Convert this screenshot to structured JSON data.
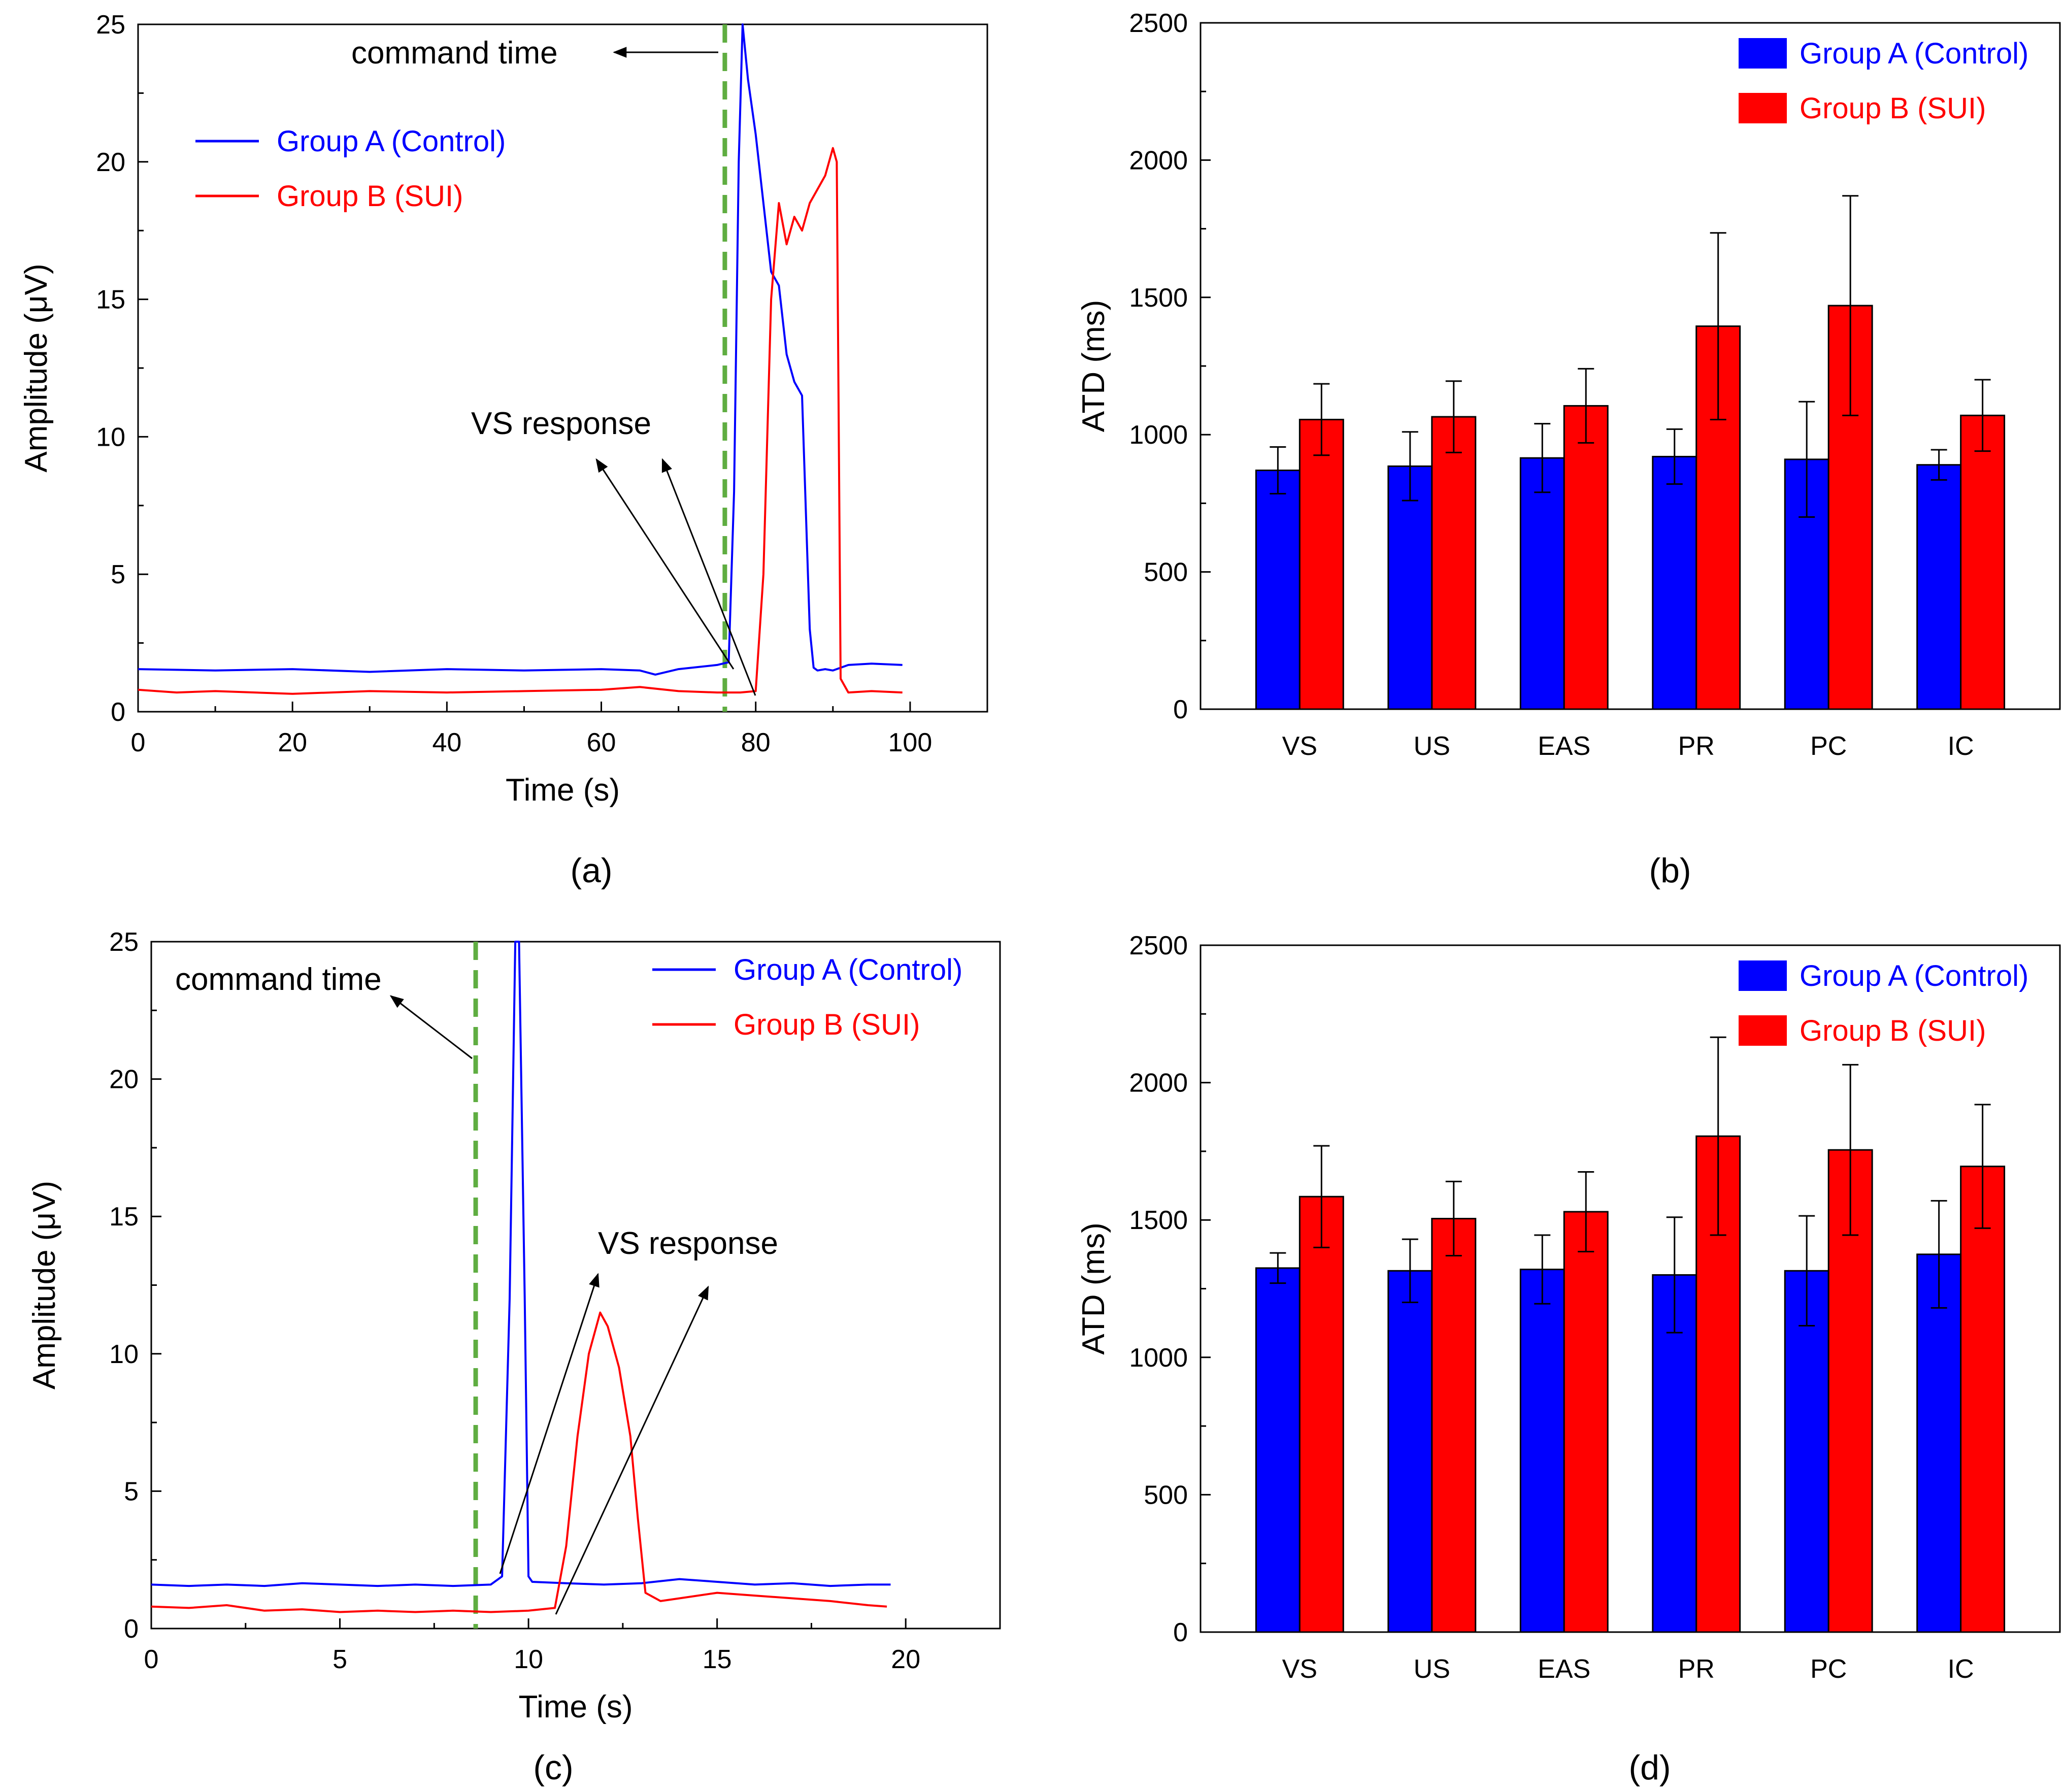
{
  "colors": {
    "group_a": "#0000ff",
    "group_b": "#ff0000",
    "command_line": "#5fad41",
    "axis": "#000000"
  },
  "chart_data": [
    {
      "id": "a",
      "type": "line",
      "panel_label": "(a)",
      "xlabel": "Time (s)",
      "ylabel": "Amplitude (μV)",
      "xlim": [
        0,
        110
      ],
      "ylim": [
        0,
        25
      ],
      "x_ticks": [
        0,
        20,
        40,
        60,
        80,
        100
      ],
      "y_ticks": [
        0,
        5,
        10,
        15,
        20,
        25
      ],
      "legend_position": "top-left",
      "command_time": 76,
      "annotations": {
        "command": "command time",
        "response": "VS response"
      },
      "series": [
        {
          "name": "Group A (Control)",
          "color": "#0000ff",
          "x": [
            0,
            10,
            20,
            30,
            40,
            50,
            60,
            65,
            67,
            70,
            75,
            76.5,
            77.2,
            77.8,
            78.3,
            79,
            80,
            81,
            82,
            83,
            84,
            85,
            86,
            87,
            87.5,
            88,
            89,
            90,
            92,
            95,
            99
          ],
          "y": [
            1.55,
            1.5,
            1.55,
            1.45,
            1.55,
            1.5,
            1.55,
            1.5,
            1.35,
            1.55,
            1.7,
            1.8,
            8,
            20,
            25,
            23,
            21,
            18.5,
            16,
            15.5,
            13,
            12,
            11.5,
            3,
            1.6,
            1.5,
            1.55,
            1.5,
            1.7,
            1.75,
            1.7
          ]
        },
        {
          "name": "Group B (SUI)",
          "color": "#ff0000",
          "x": [
            0,
            5,
            10,
            20,
            30,
            40,
            50,
            60,
            65,
            70,
            75,
            78,
            80,
            81,
            82,
            83,
            84,
            85,
            86,
            87,
            88,
            89,
            90,
            90.5,
            91,
            92,
            95,
            99
          ],
          "y": [
            0.8,
            0.7,
            0.75,
            0.65,
            0.75,
            0.7,
            0.75,
            0.8,
            0.9,
            0.75,
            0.7,
            0.7,
            0.75,
            5,
            15,
            18.5,
            17,
            18,
            17.5,
            18.5,
            19,
            19.5,
            20.5,
            20,
            1.2,
            0.7,
            0.75,
            0.7
          ]
        }
      ]
    },
    {
      "id": "b",
      "type": "bar",
      "panel_label": "(b)",
      "xlabel": "",
      "ylabel": "ATD (ms)",
      "ylim": [
        0,
        2500
      ],
      "y_ticks": [
        0,
        500,
        1000,
        1500,
        2000,
        2500
      ],
      "legend_position": "top-right",
      "categories": [
        "VS",
        "US",
        "EAS",
        "PR",
        "PC",
        "IC"
      ],
      "series": [
        {
          "name": "Group A (Control)",
          "color": "#0000ff",
          "values": [
            870,
            885,
            915,
            920,
            910,
            890
          ],
          "errors": [
            85,
            125,
            125,
            100,
            210,
            55
          ]
        },
        {
          "name": "Group B (SUI)",
          "color": "#ff0000",
          "values": [
            1055,
            1065,
            1105,
            1395,
            1470,
            1070
          ],
          "errors": [
            130,
            130,
            135,
            340,
            400,
            130
          ]
        }
      ]
    },
    {
      "id": "c",
      "type": "line",
      "panel_label": "(c)",
      "xlabel": "Time (s)",
      "ylabel": "Amplitude (μV)",
      "xlim": [
        0,
        22.5
      ],
      "ylim": [
        0,
        25
      ],
      "x_ticks": [
        0,
        5,
        10,
        15,
        20
      ],
      "y_ticks": [
        0,
        5,
        10,
        15,
        20,
        25
      ],
      "legend_position": "top-right",
      "command_time": 8.6,
      "annotations": {
        "command": "command time",
        "response": "VS response"
      },
      "series": [
        {
          "name": "Group A (Control)",
          "color": "#0000ff",
          "x": [
            0,
            1,
            2,
            3,
            4,
            5,
            6,
            7,
            8,
            9,
            9.3,
            9.5,
            9.65,
            9.75,
            9.9,
            10.0,
            10.1,
            11,
            12,
            13,
            14,
            15,
            16,
            17,
            18,
            19,
            19.6
          ],
          "y": [
            1.6,
            1.55,
            1.6,
            1.55,
            1.65,
            1.6,
            1.55,
            1.6,
            1.55,
            1.6,
            1.9,
            12,
            25,
            25,
            12,
            1.9,
            1.7,
            1.65,
            1.6,
            1.65,
            1.8,
            1.7,
            1.6,
            1.65,
            1.55,
            1.6,
            1.6
          ]
        },
        {
          "name": "Group B (SUI)",
          "color": "#ff0000",
          "x": [
            0,
            1,
            2,
            3,
            4,
            5,
            6,
            7,
            8,
            9,
            10,
            10.7,
            11,
            11.3,
            11.6,
            11.9,
            12.1,
            12.4,
            12.7,
            12.9,
            13.1,
            13.5,
            14,
            15,
            16,
            17,
            18,
            19,
            19.5
          ],
          "y": [
            0.8,
            0.75,
            0.85,
            0.65,
            0.7,
            0.6,
            0.65,
            0.6,
            0.65,
            0.6,
            0.65,
            0.75,
            3,
            7,
            10,
            11.5,
            11,
            9.5,
            7,
            4,
            1.3,
            1.0,
            1.1,
            1.3,
            1.2,
            1.1,
            1.0,
            0.85,
            0.8
          ]
        }
      ]
    },
    {
      "id": "d",
      "type": "bar",
      "panel_label": "(d)",
      "xlabel": "",
      "ylabel": "ATD (ms)",
      "ylim": [
        0,
        2500
      ],
      "y_ticks": [
        0,
        500,
        1000,
        1500,
        2000,
        2500
      ],
      "legend_position": "top-right",
      "categories": [
        "VS",
        "US",
        "EAS",
        "PR",
        "PC",
        "IC"
      ],
      "series": [
        {
          "name": "Group A (Control)",
          "color": "#0000ff",
          "values": [
            1325,
            1315,
            1320,
            1300,
            1315,
            1375
          ],
          "errors": [
            55,
            115,
            125,
            210,
            200,
            195
          ]
        },
        {
          "name": "Group B (SUI)",
          "color": "#ff0000",
          "values": [
            1585,
            1505,
            1530,
            1805,
            1755,
            1695
          ],
          "errors": [
            185,
            135,
            145,
            360,
            310,
            225
          ]
        }
      ]
    }
  ]
}
